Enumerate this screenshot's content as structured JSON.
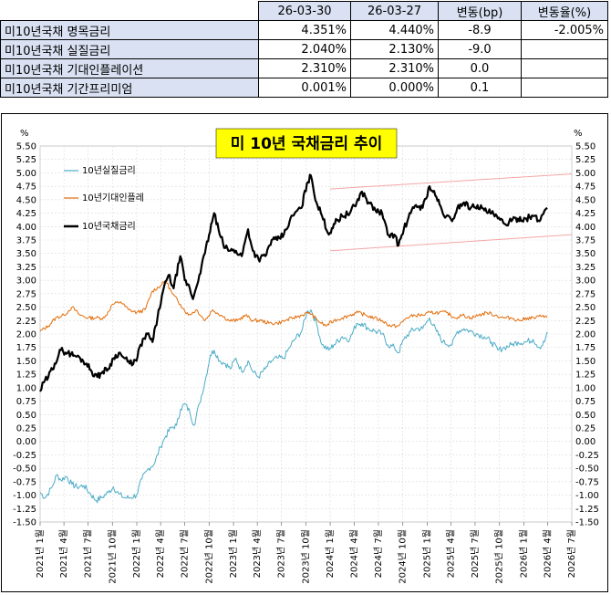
{
  "table": {
    "headers": [
      "",
      "26-03-30",
      "26-03-27",
      "변동(bp)",
      "변동율(%)"
    ],
    "rows": [
      {
        "label": "미10년국채 명목금리",
        "c1": "4.351%",
        "c2": "4.440%",
        "c3": "-8.9",
        "c4": "-2.005%"
      },
      {
        "label": "미10년국채 실질금리",
        "c1": "2.040%",
        "c2": "2.130%",
        "c3": "-9.0",
        "c4": ""
      },
      {
        "label": "미10년국채 기대인플레이션",
        "c1": "2.310%",
        "c2": "2.310%",
        "c3": "0.0",
        "c4": ""
      },
      {
        "label": "미10년국채 기간프리미엄",
        "c1": "0.001%",
        "c2": "0.000%",
        "c3": "0.1",
        "c4": ""
      }
    ]
  },
  "chart_data": {
    "type": "line",
    "title": "미 10년  국채금리  추이",
    "unit_left": "%",
    "unit_right": "%",
    "ylim": [
      -1.5,
      5.5
    ],
    "ytick_step": 0.25,
    "xlim": [
      "2021-01-01",
      "2026-07-01"
    ],
    "x_tick_labels": [
      "2021년 1월",
      "2021년 4월",
      "2021년 7월",
      "2021년 10월",
      "2022년 1월",
      "2022년 4월",
      "2022년 7월",
      "2022년 10월",
      "2023년 1월",
      "2023년 4월",
      "2023년 7월",
      "2023년 10월",
      "2024년 1월",
      "2024년 4월",
      "2024년 7월",
      "2024년 10월",
      "2025년 1월",
      "2025년 4월",
      "2025년 7월",
      "2025년 10월",
      "2026년 1월",
      "2026년 4월",
      "2026년 7월"
    ],
    "colors": {
      "real": "#4bacc6",
      "breakeven": "#e36c09",
      "nominal": "#000000",
      "trend": "#f4a6a6"
    },
    "legend_placement": "top-left",
    "series": [
      {
        "name": "10년실질금리",
        "key": "real",
        "dates": [
          "2021-01-01",
          "2021-01-20",
          "2021-02-15",
          "2021-03-05",
          "2021-03-20",
          "2021-04-10",
          "2021-05-01",
          "2021-05-20",
          "2021-06-15",
          "2021-07-05",
          "2021-08-01",
          "2021-08-20",
          "2021-09-15",
          "2021-10-05",
          "2021-10-25",
          "2021-11-15",
          "2021-12-05",
          "2021-12-31",
          "2022-01-20",
          "2022-02-15",
          "2022-03-10",
          "2022-03-31",
          "2022-04-20",
          "2022-05-10",
          "2022-05-31",
          "2022-06-15",
          "2022-07-01",
          "2022-07-20",
          "2022-08-05",
          "2022-08-25",
          "2022-09-15",
          "2022-10-05",
          "2022-10-20",
          "2022-11-10",
          "2022-12-01",
          "2022-12-20",
          "2023-01-10",
          "2023-02-01",
          "2023-02-25",
          "2023-03-15",
          "2023-04-05",
          "2023-05-01",
          "2023-05-25",
          "2023-06-15",
          "2023-07-10",
          "2023-08-01",
          "2023-08-20",
          "2023-09-15",
          "2023-10-05",
          "2023-10-20",
          "2023-11-10",
          "2023-12-01",
          "2023-12-27",
          "2024-01-15",
          "2024-02-15",
          "2024-03-15",
          "2024-04-10",
          "2024-04-30",
          "2024-05-25",
          "2024-06-20",
          "2024-07-15",
          "2024-08-05",
          "2024-08-30",
          "2024-09-15",
          "2024-10-05",
          "2024-10-31",
          "2024-11-20",
          "2024-12-15",
          "2025-01-10",
          "2025-02-05",
          "2025-03-01",
          "2025-04-05",
          "2025-04-25",
          "2025-05-20",
          "2025-06-15",
          "2025-07-10",
          "2025-08-05",
          "2025-09-01",
          "2025-09-25",
          "2025-10-20",
          "2025-11-15",
          "2025-12-10",
          "2026-01-10",
          "2026-02-05",
          "2026-03-01",
          "2026-03-20",
          "2026-03-30"
        ],
        "values": [
          -0.95,
          -1.05,
          -0.85,
          -0.62,
          -0.72,
          -0.65,
          -0.8,
          -0.85,
          -0.82,
          -0.95,
          -1.1,
          -1.05,
          -0.95,
          -0.85,
          -0.98,
          -1.05,
          -1.05,
          -1.0,
          -0.7,
          -0.5,
          -0.4,
          -0.1,
          0.1,
          0.25,
          0.3,
          0.6,
          0.7,
          0.55,
          0.3,
          0.7,
          1.1,
          1.6,
          1.7,
          1.5,
          1.45,
          1.35,
          1.55,
          1.3,
          1.5,
          1.3,
          1.2,
          1.35,
          1.5,
          1.55,
          1.55,
          1.75,
          1.9,
          2.05,
          2.4,
          2.45,
          2.2,
          1.8,
          1.7,
          1.8,
          1.95,
          1.9,
          2.2,
          2.2,
          2.1,
          2.05,
          2.0,
          1.8,
          1.75,
          1.65,
          1.9,
          2.05,
          2.1,
          2.1,
          2.3,
          2.05,
          1.85,
          1.8,
          2.05,
          2.1,
          2.05,
          2.0,
          1.95,
          1.85,
          1.7,
          1.75,
          1.8,
          1.85,
          1.85,
          1.9,
          1.75,
          1.85,
          2.04
        ]
      },
      {
        "name": "10년기대인플레",
        "key": "breakeven",
        "dates": [
          "2021-01-01",
          "2021-02-01",
          "2021-03-01",
          "2021-04-01",
          "2021-05-01",
          "2021-06-01",
          "2021-07-01",
          "2021-08-01",
          "2021-09-01",
          "2021-10-01",
          "2021-11-01",
          "2021-12-01",
          "2022-01-01",
          "2022-02-01",
          "2022-03-01",
          "2022-04-01",
          "2022-04-20",
          "2022-05-15",
          "2022-06-15",
          "2022-07-15",
          "2022-08-15",
          "2022-09-15",
          "2022-10-15",
          "2022-11-15",
          "2022-12-15",
          "2023-01-15",
          "2023-02-15",
          "2023-03-15",
          "2023-04-15",
          "2023-05-15",
          "2023-06-15",
          "2023-07-15",
          "2023-08-15",
          "2023-09-15",
          "2023-10-15",
          "2023-11-15",
          "2023-12-15",
          "2024-01-15",
          "2024-02-15",
          "2024-03-15",
          "2024-04-15",
          "2024-05-15",
          "2024-06-15",
          "2024-07-15",
          "2024-08-15",
          "2024-09-15",
          "2024-10-15",
          "2024-11-15",
          "2024-12-15",
          "2025-01-15",
          "2025-02-15",
          "2025-03-15",
          "2025-04-15",
          "2025-05-15",
          "2025-06-15",
          "2025-07-15",
          "2025-08-15",
          "2025-09-15",
          "2025-10-15",
          "2025-11-15",
          "2025-12-15",
          "2026-01-15",
          "2026-02-15",
          "2026-03-15",
          "2026-03-30"
        ],
        "values": [
          2.05,
          2.15,
          2.3,
          2.35,
          2.5,
          2.35,
          2.3,
          2.3,
          2.3,
          2.55,
          2.6,
          2.45,
          2.4,
          2.45,
          2.8,
          2.9,
          3.0,
          2.75,
          2.55,
          2.35,
          2.45,
          2.25,
          2.45,
          2.35,
          2.25,
          2.25,
          2.35,
          2.25,
          2.25,
          2.2,
          2.2,
          2.25,
          2.3,
          2.35,
          2.4,
          2.25,
          2.15,
          2.25,
          2.3,
          2.35,
          2.4,
          2.35,
          2.3,
          2.25,
          2.15,
          2.15,
          2.3,
          2.35,
          2.35,
          2.4,
          2.4,
          2.4,
          2.3,
          2.35,
          2.3,
          2.35,
          2.4,
          2.35,
          2.3,
          2.3,
          2.25,
          2.3,
          2.3,
          2.35,
          2.31
        ]
      },
      {
        "name": "10년국채금리",
        "key": "nominal",
        "dates": [
          "2021-01-01",
          "2021-01-15",
          "2021-02-01",
          "2021-02-25",
          "2021-03-20",
          "2021-04-15",
          "2021-05-10",
          "2021-06-01",
          "2021-06-25",
          "2021-07-15",
          "2021-08-05",
          "2021-08-25",
          "2021-09-15",
          "2021-10-05",
          "2021-10-25",
          "2021-11-15",
          "2021-12-05",
          "2021-12-31",
          "2022-01-15",
          "2022-02-10",
          "2022-03-01",
          "2022-03-20",
          "2022-04-10",
          "2022-05-01",
          "2022-05-20",
          "2022-06-14",
          "2022-07-01",
          "2022-07-20",
          "2022-08-01",
          "2022-08-25",
          "2022-09-15",
          "2022-10-01",
          "2022-10-20",
          "2022-11-10",
          "2022-12-01",
          "2022-12-20",
          "2023-01-10",
          "2023-02-01",
          "2023-02-25",
          "2023-03-15",
          "2023-04-05",
          "2023-05-01",
          "2023-05-25",
          "2023-06-15",
          "2023-07-10",
          "2023-08-01",
          "2023-08-20",
          "2023-09-15",
          "2023-10-05",
          "2023-10-20",
          "2023-11-10",
          "2023-12-01",
          "2023-12-27",
          "2024-01-15",
          "2024-02-15",
          "2024-03-15",
          "2024-04-10",
          "2024-04-30",
          "2024-05-25",
          "2024-06-20",
          "2024-07-15",
          "2024-08-05",
          "2024-08-30",
          "2024-09-15",
          "2024-10-05",
          "2024-10-31",
          "2024-11-20",
          "2024-12-15",
          "2025-01-10",
          "2025-02-05",
          "2025-03-01",
          "2025-04-05",
          "2025-04-25",
          "2025-05-20",
          "2025-06-15",
          "2025-07-10",
          "2025-08-05",
          "2025-09-01",
          "2025-09-25",
          "2025-10-20",
          "2025-11-15",
          "2025-12-10",
          "2026-01-10",
          "2026-02-05",
          "2026-03-01",
          "2026-03-20",
          "2026-03-30"
        ],
        "values": [
          0.93,
          1.1,
          1.2,
          1.45,
          1.7,
          1.65,
          1.6,
          1.55,
          1.45,
          1.3,
          1.2,
          1.3,
          1.35,
          1.55,
          1.65,
          1.55,
          1.45,
          1.5,
          1.8,
          2.0,
          1.85,
          2.3,
          2.8,
          3.1,
          2.85,
          3.45,
          3.0,
          2.85,
          2.65,
          3.1,
          3.5,
          3.85,
          4.25,
          3.85,
          3.6,
          3.55,
          3.55,
          3.45,
          3.95,
          3.55,
          3.4,
          3.45,
          3.75,
          3.75,
          3.85,
          4.1,
          4.25,
          4.35,
          4.8,
          4.95,
          4.45,
          4.2,
          3.85,
          4.05,
          4.2,
          4.25,
          4.45,
          4.65,
          4.45,
          4.3,
          4.25,
          3.85,
          3.85,
          3.65,
          3.95,
          4.25,
          4.4,
          4.35,
          4.75,
          4.55,
          4.25,
          4.1,
          4.35,
          4.45,
          4.35,
          4.4,
          4.3,
          4.25,
          4.15,
          4.05,
          4.1,
          4.15,
          4.15,
          4.2,
          4.1,
          4.3,
          4.35
        ]
      }
    ],
    "trendlines": [
      {
        "x0": "2024-01-01",
        "y0": 4.7,
        "x1": "2026-07-01",
        "y1": 4.98
      },
      {
        "x0": "2024-01-01",
        "y0": 3.55,
        "x1": "2026-07-01",
        "y1": 3.85
      }
    ]
  }
}
